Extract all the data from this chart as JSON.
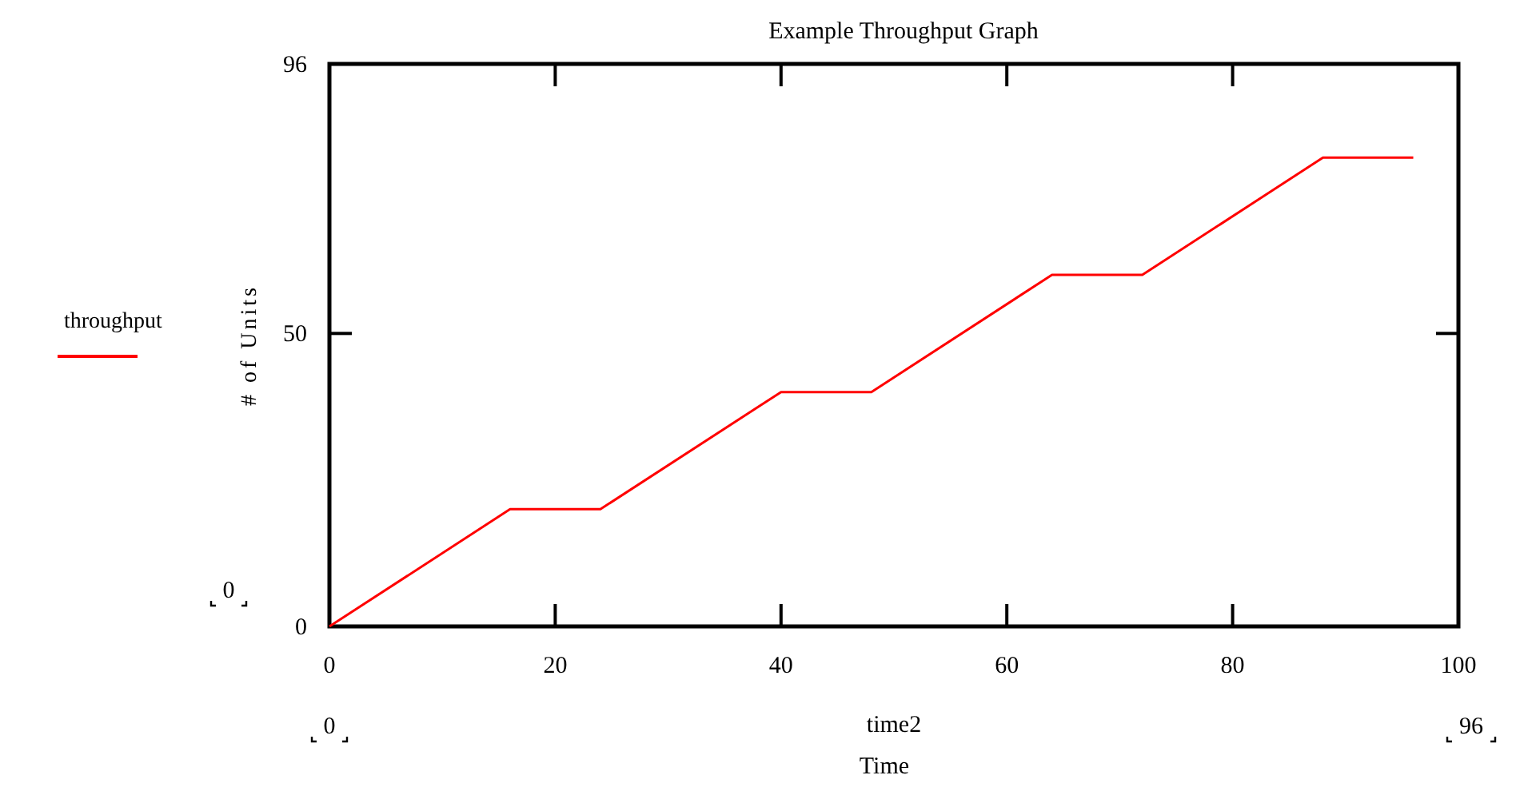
{
  "chart_data": {
    "type": "line",
    "title": "Example Throughput Graph",
    "xlabel": "Time",
    "ylabel": "# of Units",
    "x": [
      0,
      16,
      24,
      40,
      48,
      64,
      72,
      88,
      96
    ],
    "series": [
      {
        "name": "throughput",
        "color": "#ff0000",
        "values": [
          0,
          20,
          20,
          40,
          40,
          60,
          60,
          80,
          80
        ]
      }
    ],
    "xlim": [
      0,
      100
    ],
    "xticks": [
      0,
      20,
      40,
      60,
      80,
      100
    ],
    "ylim": [
      0,
      96
    ],
    "yticks": [
      0,
      50,
      96
    ],
    "legend": "left",
    "grid": false,
    "marker": "none",
    "line_style": "solid",
    "annotations": [
      "time2",
      "0",
      "0",
      "96"
    ]
  }
}
